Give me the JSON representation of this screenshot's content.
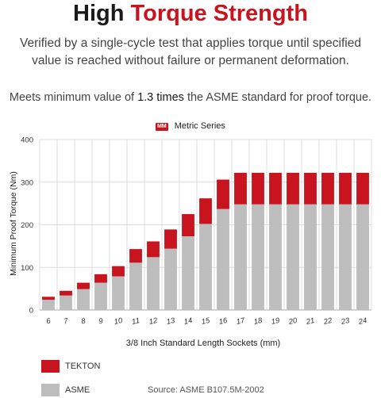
{
  "header": {
    "title_main": "High",
    "title_accent": "Torque Strength",
    "intro": "Verified by a single-cycle test that applies torque until specified value is reached without failure or permanent deformation.",
    "note_before": "Meets minimum value of",
    "note_highlight": "1.3 times",
    "note_after": "the ASME standard for proof torque."
  },
  "series_tag": {
    "badge": "MM",
    "label": "Metric Series"
  },
  "legend": [
    {
      "label": "TEKTON",
      "color": "#c8141e"
    },
    {
      "label": "ASME",
      "color": "#bdbdbd"
    }
  ],
  "source": "Source: ASME B107.5M-2002",
  "colors": {
    "accent": "#c8141e",
    "asme": "#bdbdbd",
    "grid": "#dddddd"
  },
  "chart_data": {
    "type": "bar",
    "stacked": true,
    "xlabel": "3/8 Inch Standard Length Sockets (mm)",
    "ylabel": "Minimum Proof Torque (Nm)",
    "ylim": [
      0,
      400
    ],
    "yticks": [
      0,
      100,
      200,
      300,
      400
    ],
    "grid": true,
    "categories": [
      "6",
      "7",
      "8",
      "9",
      "10",
      "11",
      "12",
      "13",
      "14",
      "15",
      "16",
      "17",
      "18",
      "19",
      "20",
      "21",
      "22",
      "23",
      "24"
    ],
    "series": [
      {
        "name": "ASME",
        "color": "#bdbdbd",
        "values": [
          24,
          34,
          49,
          64,
          79,
          111,
          124,
          144,
          173,
          202,
          237,
          248,
          248,
          248,
          248,
          248,
          248,
          248,
          248
        ]
      },
      {
        "name": "TEKTON",
        "color": "#c8141e",
        "values": [
          7,
          11,
          15,
          20,
          24,
          32,
          37,
          45,
          52,
          60,
          69,
          74,
          74,
          74,
          74,
          74,
          74,
          74,
          74
        ]
      }
    ]
  }
}
